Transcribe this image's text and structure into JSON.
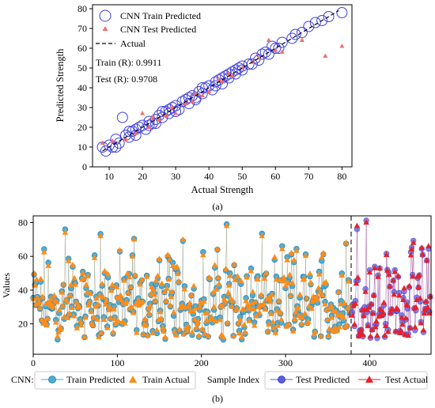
{
  "chart_data": [
    {
      "type": "scatter",
      "panel_label": "(a)",
      "xlabel": "Actual Strength",
      "ylabel": "Predicted Strength",
      "xlim": [
        5,
        83
      ],
      "ylim": [
        0,
        82
      ],
      "xticks": [
        10,
        20,
        30,
        40,
        50,
        60,
        70,
        80
      ],
      "yticks": [
        0,
        10,
        20,
        30,
        40,
        50,
        60,
        70,
        80
      ],
      "grid": false,
      "legend_position": "top-left",
      "legend": {
        "train": "CNN Train Predicted",
        "test": "CNN Test Predicted",
        "actual": "Actual"
      },
      "annotations": {
        "train_r": "Train (R): 0.9911",
        "test_r": "Test (R): 0.9708"
      },
      "colors": {
        "train": "#4040e0",
        "test": "#f07070",
        "actual": "#000000"
      },
      "series": [
        {
          "name": "CNN Train Predicted",
          "points": [
            [
              8,
              10
            ],
            [
              9,
              8
            ],
            [
              10,
              11
            ],
            [
              11,
              10
            ],
            [
              12,
              14
            ],
            [
              13,
              12
            ],
            [
              14,
              25
            ],
            [
              15,
              16
            ],
            [
              16,
              15
            ],
            [
              17,
              18
            ],
            [
              18,
              16
            ],
            [
              19,
              20
            ],
            [
              20,
              21
            ],
            [
              21,
              19
            ],
            [
              22,
              23
            ],
            [
              23,
              22
            ],
            [
              24,
              24
            ],
            [
              25,
              26
            ],
            [
              26,
              25
            ],
            [
              27,
              28
            ],
            [
              28,
              27
            ],
            [
              29,
              30
            ],
            [
              30,
              31
            ],
            [
              31,
              29
            ],
            [
              32,
              33
            ],
            [
              33,
              34
            ],
            [
              34,
              32
            ],
            [
              35,
              36
            ],
            [
              36,
              35
            ],
            [
              37,
              38
            ],
            [
              38,
              37
            ],
            [
              39,
              40
            ],
            [
              40,
              41
            ],
            [
              41,
              39
            ],
            [
              42,
              43
            ],
            [
              43,
              44
            ],
            [
              44,
              42
            ],
            [
              45,
              46
            ],
            [
              46,
              45
            ],
            [
              47,
              48
            ],
            [
              48,
              47
            ],
            [
              49,
              50
            ],
            [
              50,
              51
            ],
            [
              52,
              52
            ],
            [
              54,
              55
            ],
            [
              55,
              54
            ],
            [
              57,
              58
            ],
            [
              58,
              57
            ],
            [
              60,
              60
            ],
            [
              62,
              63
            ],
            [
              65,
              65
            ],
            [
              68,
              68
            ],
            [
              72,
              73
            ],
            [
              76,
              76
            ],
            [
              80,
              78
            ],
            [
              12,
              10
            ],
            [
              18,
              19
            ],
            [
              22,
              21
            ],
            [
              26,
              28
            ],
            [
              30,
              28
            ],
            [
              34,
              35
            ],
            [
              38,
              40
            ],
            [
              42,
              41
            ],
            [
              46,
              47
            ],
            [
              50,
              49
            ],
            [
              56,
              57
            ],
            [
              61,
              60
            ],
            [
              66,
              67
            ],
            [
              70,
              71
            ],
            [
              74,
              74
            ],
            [
              16,
              18
            ],
            [
              24,
              22
            ],
            [
              28,
              29
            ],
            [
              36,
              34
            ],
            [
              44,
              45
            ],
            [
              48,
              49
            ],
            [
              53,
              52
            ],
            [
              59,
              61
            ]
          ]
        },
        {
          "name": "CNN Test Predicted",
          "points": [
            [
              8,
              12
            ],
            [
              11,
              13
            ],
            [
              15,
              14
            ],
            [
              18,
              17
            ],
            [
              22,
              20
            ],
            [
              25,
              24
            ],
            [
              29,
              30
            ],
            [
              33,
              32
            ],
            [
              36,
              37
            ],
            [
              40,
              38
            ],
            [
              43,
              44
            ],
            [
              46,
              47
            ],
            [
              50,
              50
            ],
            [
              55,
              55
            ],
            [
              58,
              64
            ],
            [
              62,
              58
            ],
            [
              68,
              64
            ],
            [
              75,
              56
            ],
            [
              80,
              61
            ],
            [
              20,
              27
            ],
            [
              30,
              27
            ],
            [
              38,
              36
            ],
            [
              44,
              43
            ],
            [
              53,
              53
            ],
            [
              27,
              26
            ],
            [
              47,
              46
            ],
            [
              60,
              59
            ],
            [
              35,
              33
            ],
            [
              23,
              25
            ]
          ]
        },
        {
          "name": "Actual",
          "points": [
            [
              8,
              8
            ],
            [
              79,
              79
            ]
          ]
        }
      ]
    },
    {
      "type": "line",
      "panel_label": "(b)",
      "xlabel": "Sample Index",
      "ylabel": "Values",
      "xlim": [
        0,
        473
      ],
      "ylim": [
        2,
        84
      ],
      "xticks": [
        0,
        100,
        200,
        300,
        400
      ],
      "yticks": [
        20,
        40,
        60,
        80
      ],
      "grid": false,
      "split_index": 378,
      "legend_position": "bottom",
      "legend_prefix": "CNN:",
      "legend": {
        "train_predicted": "Train Predicted",
        "train_actual": "Train Actual",
        "test_predicted": "Test Predicted",
        "test_actual": "Test Actual"
      },
      "colors": {
        "train_predicted": "#4aaed6",
        "train_actual": "#ff8c1a",
        "test_predicted": "#5a5ae6",
        "test_actual": "#e8202a",
        "split_line": "#7a7a7a"
      },
      "highlights": {
        "train": [
          [
            38,
            74
          ],
          [
            80,
            72
          ],
          [
            120,
            70
          ],
          [
            178,
            70
          ],
          [
            230,
            78
          ],
          [
            272,
            72
          ],
          [
            307,
            62
          ],
          [
            372,
            68
          ]
        ],
        "test": [
          [
            385,
            78
          ],
          [
            396,
            80
          ],
          [
            452,
            68
          ],
          [
            462,
            65
          ],
          [
            470,
            66
          ]
        ]
      },
      "series": [
        {
          "name": "Train Predicted",
          "range": [
            0,
            378
          ]
        },
        {
          "name": "Train Actual",
          "range": [
            0,
            378
          ]
        },
        {
          "name": "Test Predicted",
          "range": [
            378,
            473
          ]
        },
        {
          "name": "Test Actual",
          "range": [
            378,
            473
          ]
        }
      ]
    }
  ]
}
